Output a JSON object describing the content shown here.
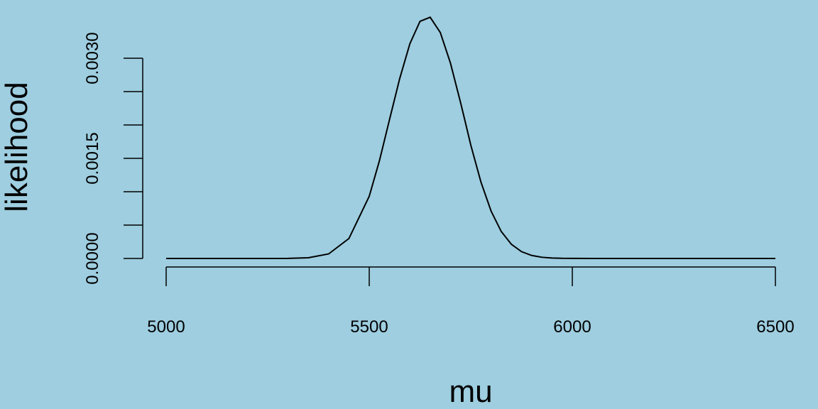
{
  "chart_data": {
    "type": "line",
    "title": "",
    "xlabel": "mu",
    "ylabel": "likelihood",
    "xlim": [
      5000,
      6500
    ],
    "ylim": [
      0,
      0.0034
    ],
    "x_ticks": [
      5000,
      5500,
      6000,
      6500
    ],
    "x_tick_labels": [
      "5000",
      "5500",
      "6000",
      "6500"
    ],
    "y_ticks": [
      0.0,
      0.0005,
      0.001,
      0.0015,
      0.002,
      0.0025,
      0.003
    ],
    "y_tick_labels": [
      "0.0000",
      "0.0015",
      "0.0030"
    ],
    "y_tick_labels_at": [
      0.0,
      0.0015,
      0.003
    ],
    "grid": false,
    "colors": {
      "background": "#9ecee0",
      "line": "#000000"
    },
    "series": [
      {
        "x": [
          5000,
          5050,
          5100,
          5150,
          5200,
          5250,
          5300,
          5350,
          5400,
          5450,
          5500,
          5525,
          5550,
          5575,
          5600,
          5625,
          5650,
          5675,
          5700,
          5725,
          5735,
          5750,
          5775,
          5800,
          5825,
          5850,
          5875,
          5900,
          5925,
          5950,
          5975,
          6000,
          6050,
          6100,
          6150,
          6200,
          6250,
          6300,
          6350,
          6400,
          6450,
          6500
        ],
        "y": [
          0.0,
          0.0,
          0.0,
          0.0,
          0.0,
          0.0,
          1e-06,
          1.1e-05,
          6.8e-05,
          0.000299,
          0.000932,
          0.001462,
          0.002082,
          0.002695,
          0.003216,
          0.003553,
          0.003614,
          0.003385,
          0.002926,
          0.002332,
          0.002081,
          0.001699,
          0.001145,
          0.00071,
          0.000404,
          0.000212,
          0.000102,
          4.5e-05,
          1.8e-05,
          7e-06,
          2e-06,
          1e-06,
          0.0,
          0.0,
          0.0,
          0.0,
          0.0,
          0.0,
          0.0,
          0.0,
          0.0,
          0.0
        ]
      }
    ]
  }
}
